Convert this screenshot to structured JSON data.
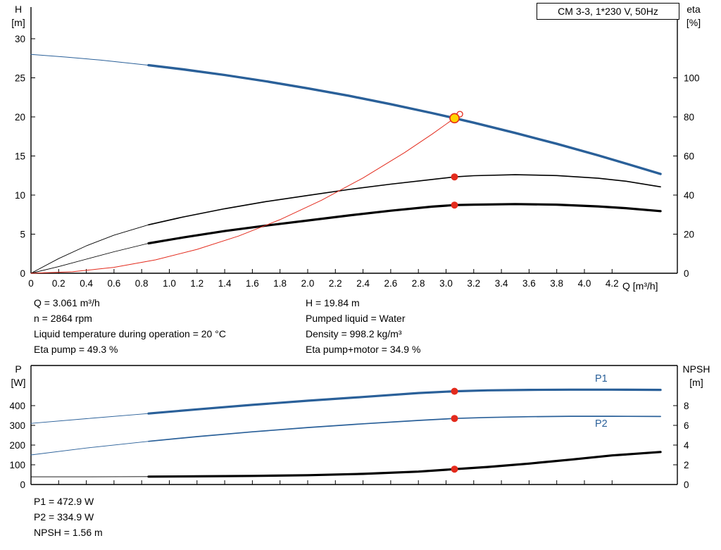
{
  "title_box": "CM 3-3, 1*230 V, 50Hz",
  "colors": {
    "blue": "#2a6099",
    "red": "#e32b1d",
    "yellow": "#ffd400",
    "black": "#000000"
  },
  "labels": {
    "h": "H",
    "h_unit": "[m]",
    "eta": "eta",
    "eta_unit": "[%]",
    "p": "P",
    "p_unit": "[W]",
    "npsh": "NPSH",
    "npsh_unit": "[m]",
    "q_axis": "Q [m³/h]",
    "p1": "P1",
    "p2": "P2"
  },
  "info_top": {
    "col1": [
      "Q = 3.061 m³/h",
      "n = 2864 rpm",
      "Liquid temperature during operation = 20 °C",
      "Eta pump = 49.3 %"
    ],
    "col2": [
      "H = 19.84 m",
      "Pumped liquid = Water",
      "Density = 998.2 kg/m³",
      "Eta pump+motor = 34.9 %"
    ]
  },
  "info_bottom": [
    "P1 = 472.9 W",
    "P2 = 334.9 W",
    "NPSH = 1.56 m"
  ],
  "chart_data": [
    {
      "type": "line",
      "title": "CM 3-3, 1*230 V, 50Hz",
      "x_axis": {
        "label": "Q [m³/h]",
        "min": 0,
        "max": 4.67,
        "tick_step": 0.2,
        "tick_labels": [
          "0",
          "0.2",
          "0.4",
          "0.6",
          "0.8",
          "1.0",
          "1.2",
          "1.4",
          "1.6",
          "1.8",
          "2.0",
          "2.2",
          "2.4",
          "2.6",
          "2.8",
          "3.0",
          "3.2",
          "3.4",
          "3.6",
          "3.8",
          "4.0",
          "4.2"
        ]
      },
      "y_left": {
        "label": "H [m]",
        "axis": "H",
        "min": 0,
        "max": 30,
        "tick_values": [
          0,
          5,
          10,
          15,
          20,
          25,
          30
        ],
        "tick_labels": [
          "0",
          "5",
          "10",
          "15",
          "20",
          "25",
          "30"
        ]
      },
      "y_right": {
        "label": "eta [%]",
        "axis": "eta",
        "min": 0,
        "max": 120,
        "tick_values": [
          0,
          20,
          40,
          60,
          80,
          100
        ],
        "tick_labels": [
          "0",
          "20",
          "40",
          "60",
          "80",
          "100"
        ]
      },
      "series": [
        {
          "name": "pump-qh-curve",
          "color": "#2a6099",
          "axis": "H",
          "segments": [
            {
              "w": 1,
              "pts": [
                [
                  0,
                  28
                ],
                [
                  0.25,
                  27.66
                ],
                [
                  0.5,
                  27.27
                ],
                [
                  0.85,
                  26.61
                ]
              ]
            },
            {
              "w": 3.4,
              "pts": [
                [
                  0.85,
                  26.61
                ],
                [
                  1.1,
                  26.08
                ],
                [
                  1.4,
                  25.36
                ],
                [
                  1.7,
                  24.55
                ],
                [
                  2.0,
                  23.66
                ],
                [
                  2.3,
                  22.69
                ],
                [
                  2.6,
                  21.63
                ],
                [
                  2.9,
                  20.49
                ],
                [
                  3.061,
                  19.84
                ],
                [
                  3.2,
                  19.26
                ],
                [
                  3.5,
                  17.95
                ],
                [
                  3.8,
                  16.56
                ],
                [
                  4.1,
                  15.08
                ],
                [
                  4.3,
                  14.04
                ],
                [
                  4.55,
                  12.7
                ]
              ]
            }
          ]
        },
        {
          "name": "eta-pump-curve",
          "color": "#000000",
          "axis": "eta",
          "segments": [
            {
              "w": 0.9,
              "pts": [
                [
                  0,
                  0
                ],
                [
                  0.2,
                  7.5
                ],
                [
                  0.4,
                  14
                ],
                [
                  0.6,
                  19.5
                ],
                [
                  0.85,
                  24.8
                ]
              ]
            },
            {
              "w": 1.6,
              "pts": [
                [
                  0.85,
                  24.8
                ],
                [
                  1.1,
                  28.8
                ],
                [
                  1.4,
                  33.0
                ],
                [
                  1.7,
                  36.7
                ],
                [
                  2.0,
                  39.8
                ],
                [
                  2.3,
                  42.9
                ],
                [
                  2.6,
                  45.6
                ],
                [
                  2.9,
                  48.0
                ],
                [
                  3.061,
                  49.3
                ],
                [
                  3.2,
                  49.9
                ],
                [
                  3.5,
                  50.4
                ],
                [
                  3.8,
                  50.0
                ],
                [
                  4.1,
                  48.6
                ],
                [
                  4.3,
                  47.1
                ],
                [
                  4.55,
                  44.2
                ]
              ]
            }
          ]
        },
        {
          "name": "eta-pump-motor-curve",
          "color": "#000000",
          "axis": "eta",
          "segments": [
            {
              "w": 0.9,
              "pts": [
                [
                  0,
                  0
                ],
                [
                  0.2,
                  3.4
                ],
                [
                  0.4,
                  7.2
                ],
                [
                  0.6,
                  11.0
                ],
                [
                  0.85,
                  15.3
                ]
              ]
            },
            {
              "w": 3.2,
              "pts": [
                [
                  0.85,
                  15.3
                ],
                [
                  1.1,
                  18.3
                ],
                [
                  1.4,
                  21.6
                ],
                [
                  1.7,
                  24.4
                ],
                [
                  2.0,
                  27.0
                ],
                [
                  2.3,
                  29.6
                ],
                [
                  2.6,
                  32.0
                ],
                [
                  2.9,
                  34.1
                ],
                [
                  3.061,
                  34.9
                ],
                [
                  3.2,
                  35.1
                ],
                [
                  3.5,
                  35.4
                ],
                [
                  3.8,
                  35.1
                ],
                [
                  4.1,
                  34.2
                ],
                [
                  4.3,
                  33.3
                ],
                [
                  4.55,
                  31.8
                ]
              ]
            }
          ]
        },
        {
          "name": "system-curve",
          "color": "#e32b1d",
          "axis": "H",
          "segments": [
            {
              "w": 1,
              "pts": [
                [
                  0,
                  0
                ],
                [
                  0.3,
                  0.19
                ],
                [
                  0.6,
                  0.76
                ],
                [
                  0.9,
                  1.71
                ],
                [
                  1.2,
                  3.05
                ],
                [
                  1.5,
                  4.76
                ],
                [
                  1.8,
                  6.86
                ],
                [
                  2.1,
                  9.34
                ],
                [
                  2.4,
                  12.19
                ],
                [
                  2.7,
                  15.43
                ],
                [
                  2.9,
                  17.81
                ],
                [
                  3.061,
                  19.84
                ],
                [
                  3.08,
                  20.08
                ]
              ]
            }
          ]
        }
      ],
      "markers": [
        {
          "name": "system-curve-end-circle",
          "q": 3.1,
          "v": 20.35,
          "axis": "H",
          "r": 4,
          "fill": "none",
          "stroke": "#e32b1d",
          "sw": 1.3
        },
        {
          "name": "duty-point",
          "q": 3.061,
          "v": 19.84,
          "axis": "H",
          "r": 6.5,
          "fill": "#ffd400",
          "stroke": "#e32b1d",
          "sw": 1.6
        },
        {
          "name": "eta-pump-point",
          "q": 3.061,
          "v": 49.3,
          "axis": "eta",
          "r": 5,
          "fill": "#e32b1d"
        },
        {
          "name": "eta-pump-motor-point",
          "q": 3.061,
          "v": 34.9,
          "axis": "eta",
          "r": 5,
          "fill": "#e32b1d"
        }
      ]
    },
    {
      "type": "line",
      "title": "Power and NPSH",
      "x_axis": {
        "label": "Q [m³/h]",
        "min": 0,
        "max": 4.67,
        "tick_step": 0.2,
        "tick_labels": []
      },
      "y_left": {
        "label": "P [W]",
        "axis": "P",
        "min": 0,
        "max": 600,
        "tick_values": [
          0,
          100,
          200,
          300,
          400
        ],
        "tick_labels": [
          "0",
          "100",
          "200",
          "300",
          "400"
        ]
      },
      "y_right": {
        "label": "NPSH [m]",
        "axis": "NPSH",
        "min": 0,
        "max": 12,
        "tick_values": [
          0,
          2,
          4,
          6,
          8
        ],
        "tick_labels": [
          "0",
          "2",
          "4",
          "6",
          "8"
        ]
      },
      "series": [
        {
          "name": "p1-curve",
          "color": "#2a6099",
          "axis": "P",
          "segments": [
            {
              "w": 0.9,
              "pts": [
                [
                  0,
                  310
                ],
                [
                  0.4,
                  334
                ],
                [
                  0.85,
                  360
                ]
              ]
            },
            {
              "w": 3.2,
              "pts": [
                [
                  0.85,
                  360
                ],
                [
                  1.2,
                  381
                ],
                [
                  1.6,
                  404
                ],
                [
                  2.0,
                  425
                ],
                [
                  2.4,
                  444
                ],
                [
                  2.8,
                  464
                ],
                [
                  3.061,
                  472.9
                ],
                [
                  3.3,
                  477.5
                ],
                [
                  3.6,
                  480
                ],
                [
                  3.9,
                  481
                ],
                [
                  4.2,
                  481
                ],
                [
                  4.55,
                  480
                ]
              ]
            }
          ]
        },
        {
          "name": "p2-curve",
          "color": "#2a6099",
          "axis": "P",
          "segments": [
            {
              "w": 0.9,
              "pts": [
                [
                  0,
                  150
                ],
                [
                  0.4,
                  185
                ],
                [
                  0.85,
                  219
                ]
              ]
            },
            {
              "w": 1.7,
              "pts": [
                [
                  0.85,
                  219
                ],
                [
                  1.2,
                  243
                ],
                [
                  1.6,
                  267
                ],
                [
                  2.0,
                  289
                ],
                [
                  2.4,
                  308
                ],
                [
                  2.8,
                  325
                ],
                [
                  3.061,
                  334.9
                ],
                [
                  3.3,
                  340
                ],
                [
                  3.6,
                  344
                ],
                [
                  3.9,
                  346
                ],
                [
                  4.2,
                  346
                ],
                [
                  4.55,
                  345
                ]
              ]
            }
          ]
        },
        {
          "name": "npsh-curve",
          "color": "#000000",
          "axis": "NPSH",
          "segments": [
            {
              "w": 0.9,
              "pts": [
                [
                  0,
                  0.78
                ],
                [
                  0.4,
                  0.78
                ],
                [
                  0.85,
                  0.8
                ]
              ]
            },
            {
              "w": 3.2,
              "pts": [
                [
                  0.85,
                  0.8
                ],
                [
                  1.2,
                  0.83
                ],
                [
                  1.6,
                  0.87
                ],
                [
                  2.0,
                  0.94
                ],
                [
                  2.4,
                  1.08
                ],
                [
                  2.8,
                  1.31
                ],
                [
                  3.061,
                  1.56
                ],
                [
                  3.3,
                  1.78
                ],
                [
                  3.6,
                  2.12
                ],
                [
                  3.9,
                  2.52
                ],
                [
                  4.2,
                  2.95
                ],
                [
                  4.55,
                  3.3
                ]
              ]
            }
          ]
        }
      ],
      "markers": [
        {
          "name": "p1-point",
          "q": 3.061,
          "v": 472.9,
          "axis": "P",
          "r": 5,
          "fill": "#e32b1d"
        },
        {
          "name": "p2-point",
          "q": 3.061,
          "v": 334.9,
          "axis": "P",
          "r": 5,
          "fill": "#e32b1d"
        },
        {
          "name": "npsh-point",
          "q": 3.061,
          "v": 1.56,
          "axis": "NPSH",
          "r": 5,
          "fill": "#e32b1d"
        }
      ]
    }
  ]
}
